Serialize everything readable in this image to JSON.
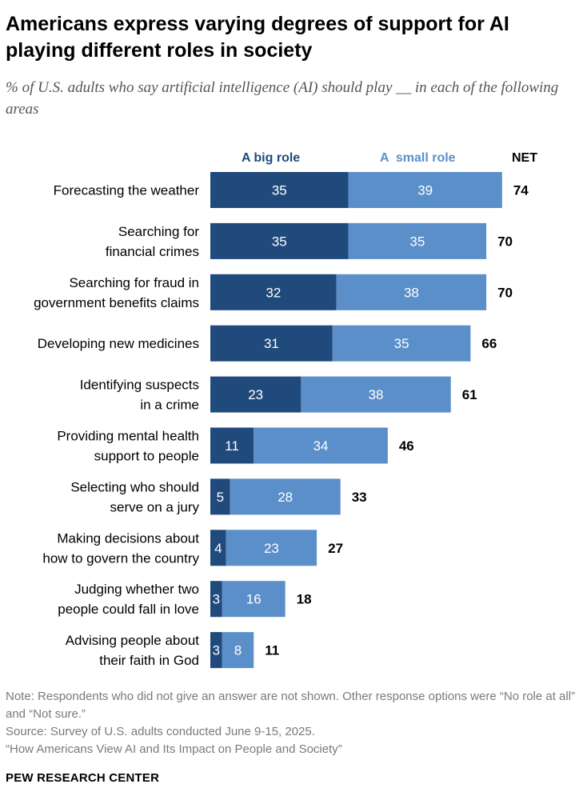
{
  "title": "Americans express varying degrees of support for AI playing different roles in society",
  "subtitle": "% of U.S. adults who say artificial intelligence (AI) should play __ in each of the following areas",
  "chart_data": {
    "type": "bar",
    "orientation": "horizontal",
    "stacked": true,
    "categories": [
      [
        "Forecasting the weather"
      ],
      [
        "Searching for",
        "financial crimes"
      ],
      [
        "Searching for fraud in",
        "government benefits claims"
      ],
      [
        "Developing new medicines"
      ],
      [
        "Identifying suspects",
        "in a crime"
      ],
      [
        "Providing mental health",
        "support to people"
      ],
      [
        "Selecting who should",
        "serve on a jury"
      ],
      [
        "Making decisions about",
        "how to govern the country"
      ],
      [
        "Judging whether two",
        "people could fall in love"
      ],
      [
        "Advising people about",
        "their faith in God"
      ]
    ],
    "series": [
      {
        "name": "A big role",
        "color": "#214a7c",
        "values": [
          35,
          35,
          32,
          31,
          23,
          11,
          5,
          4,
          3,
          3
        ]
      },
      {
        "name": "A  small role",
        "color": "#5b8fc9",
        "values": [
          39,
          35,
          38,
          35,
          38,
          34,
          28,
          23,
          16,
          8
        ]
      }
    ],
    "net_label": "NET",
    "net": [
      74,
      70,
      70,
      66,
      61,
      46,
      33,
      27,
      18,
      11
    ],
    "grid": false
  },
  "note": "Note: Respondents who did not give an answer are not shown. Other response options were “No role at all” and “Not sure.”",
  "source": "Source: Survey of U.S. adults conducted June 9-15, 2025.",
  "report": "“How Americans View AI and Its Impact on People and Society”",
  "brand": "PEW RESEARCH CENTER"
}
